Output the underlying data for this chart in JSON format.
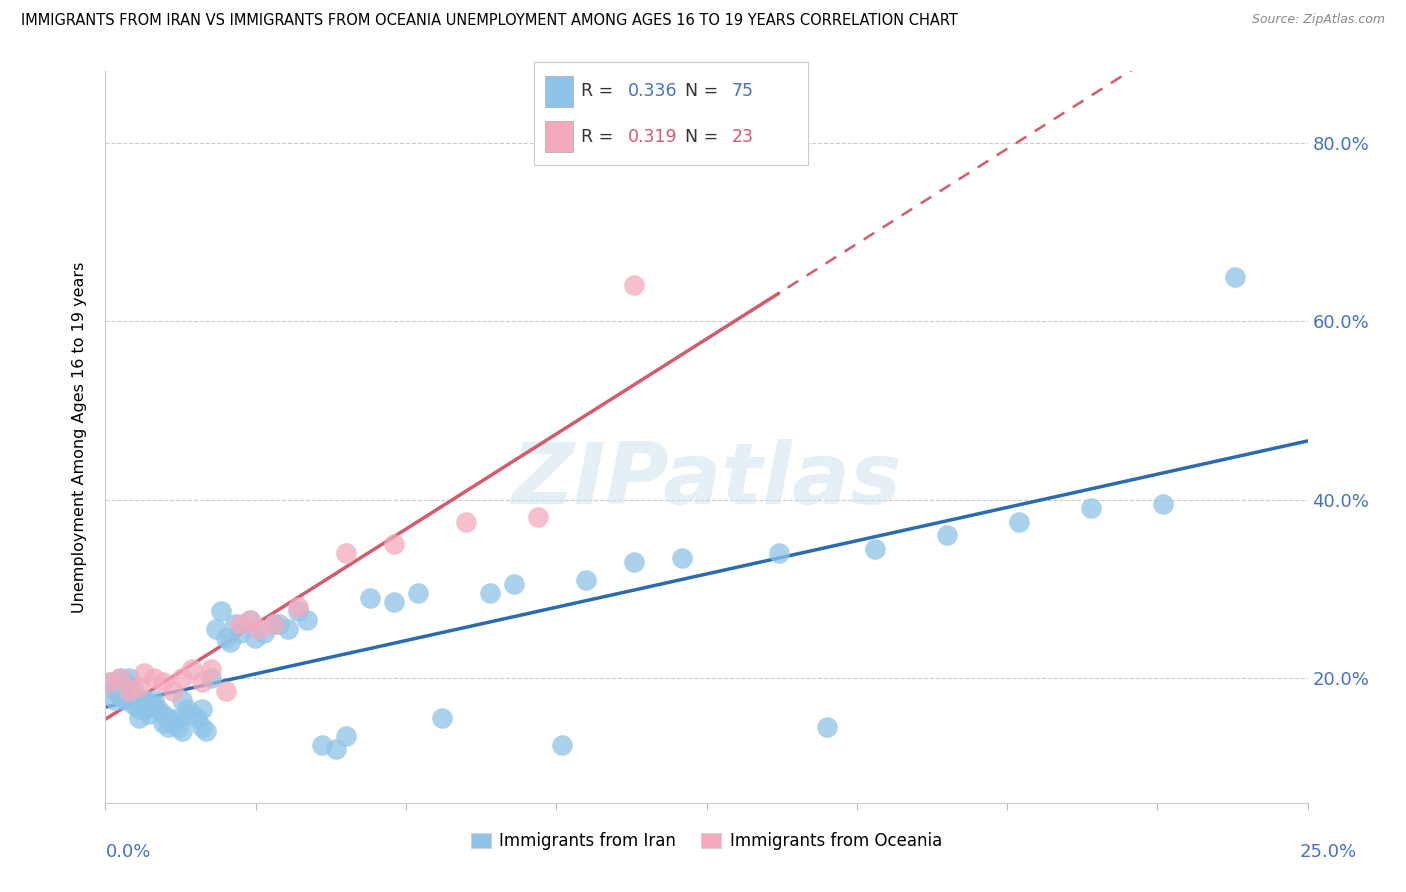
{
  "title": "IMMIGRANTS FROM IRAN VS IMMIGRANTS FROM OCEANIA UNEMPLOYMENT AMONG AGES 16 TO 19 YEARS CORRELATION CHART",
  "source": "Source: ZipAtlas.com",
  "ylabel": "Unemployment Among Ages 16 to 19 years",
  "ytick_values": [
    0.2,
    0.4,
    0.6,
    0.8
  ],
  "xmin": 0.0,
  "xmax": 0.25,
  "ymin": 0.06,
  "ymax": 0.88,
  "R_iran": 0.336,
  "N_iran": 75,
  "R_oceania": 0.319,
  "N_oceania": 23,
  "color_iran": "#8ec4e8",
  "color_oceania": "#f4aabc",
  "color_line_iran": "#2b6cb0",
  "color_line_oceania": "#d45a6e",
  "background_color": "#ffffff",
  "iran_x": [
    0.001,
    0.002,
    0.002,
    0.003,
    0.003,
    0.003,
    0.004,
    0.004,
    0.004,
    0.005,
    0.005,
    0.005,
    0.006,
    0.006,
    0.007,
    0.007,
    0.007,
    0.008,
    0.008,
    0.009,
    0.009,
    0.01,
    0.01,
    0.011,
    0.012,
    0.012,
    0.013,
    0.013,
    0.014,
    0.015,
    0.015,
    0.016,
    0.016,
    0.017,
    0.018,
    0.019,
    0.02,
    0.02,
    0.021,
    0.022,
    0.023,
    0.024,
    0.025,
    0.026,
    0.027,
    0.028,
    0.03,
    0.031,
    0.033,
    0.035,
    0.036,
    0.038,
    0.04,
    0.042,
    0.045,
    0.048,
    0.05,
    0.055,
    0.06,
    0.065,
    0.07,
    0.08,
    0.085,
    0.095,
    0.1,
    0.11,
    0.12,
    0.14,
    0.15,
    0.16,
    0.175,
    0.19,
    0.205,
    0.22,
    0.235
  ],
  "iran_y": [
    0.195,
    0.185,
    0.175,
    0.2,
    0.19,
    0.18,
    0.195,
    0.185,
    0.175,
    0.2,
    0.175,
    0.19,
    0.185,
    0.17,
    0.175,
    0.165,
    0.155,
    0.165,
    0.175,
    0.17,
    0.16,
    0.175,
    0.17,
    0.165,
    0.16,
    0.15,
    0.155,
    0.145,
    0.15,
    0.155,
    0.145,
    0.14,
    0.175,
    0.165,
    0.16,
    0.155,
    0.165,
    0.145,
    0.14,
    0.2,
    0.255,
    0.275,
    0.245,
    0.24,
    0.26,
    0.25,
    0.265,
    0.245,
    0.25,
    0.26,
    0.26,
    0.255,
    0.275,
    0.265,
    0.125,
    0.12,
    0.135,
    0.29,
    0.285,
    0.295,
    0.155,
    0.295,
    0.305,
    0.125,
    0.31,
    0.33,
    0.335,
    0.34,
    0.145,
    0.345,
    0.36,
    0.375,
    0.39,
    0.395,
    0.65
  ],
  "oceania_x": [
    0.001,
    0.003,
    0.005,
    0.007,
    0.008,
    0.01,
    0.012,
    0.014,
    0.016,
    0.018,
    0.02,
    0.022,
    0.025,
    0.028,
    0.03,
    0.032,
    0.035,
    0.04,
    0.05,
    0.06,
    0.075,
    0.09,
    0.11
  ],
  "oceania_y": [
    0.195,
    0.2,
    0.185,
    0.19,
    0.205,
    0.2,
    0.195,
    0.185,
    0.2,
    0.21,
    0.195,
    0.21,
    0.185,
    0.26,
    0.265,
    0.255,
    0.26,
    0.28,
    0.34,
    0.35,
    0.375,
    0.38,
    0.64
  ]
}
